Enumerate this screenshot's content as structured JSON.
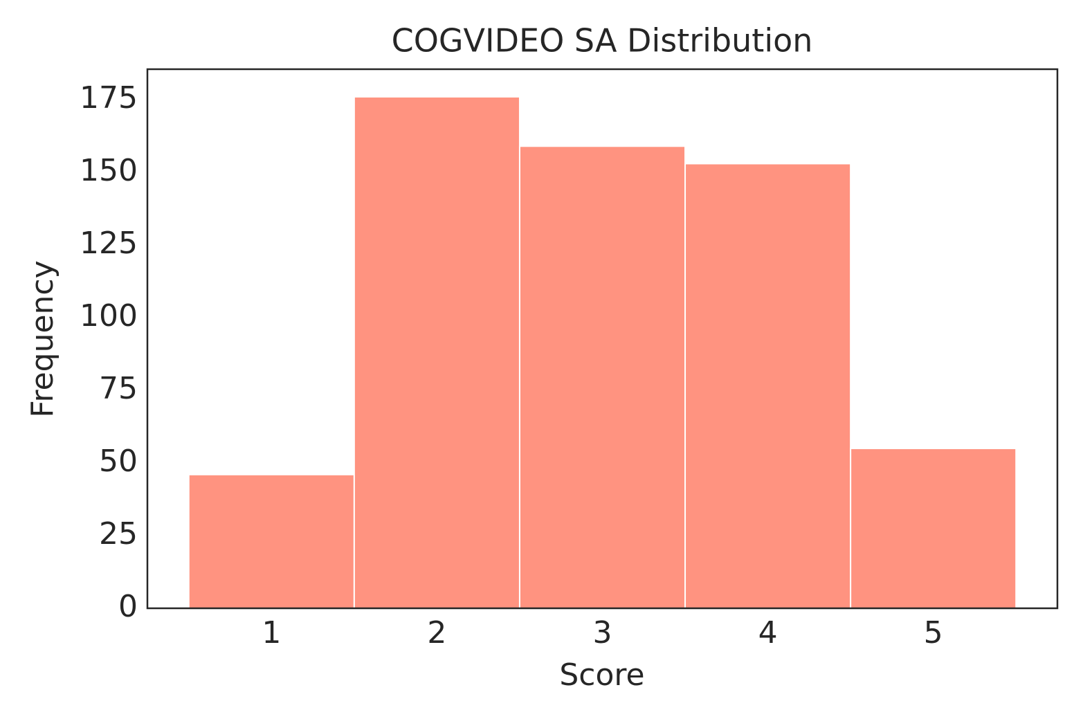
{
  "chart_data": {
    "type": "histogram",
    "title": "COGVIDEO SA Distribution",
    "x_label": "Score",
    "y_label": "Frequency",
    "bins": [
      0.5,
      1.5,
      2.5,
      3.5,
      4.5,
      5.5
    ],
    "values": [
      46,
      176,
      159,
      153,
      55
    ],
    "color": "#ff9380",
    "xlim": [
      0.25,
      5.75
    ],
    "ylim": [
      0,
      185.5
    ],
    "xticks": [
      1,
      2,
      3,
      4,
      5
    ],
    "yticks": [
      0,
      25,
      50,
      75,
      100,
      125,
      150,
      175
    ],
    "grid": false
  }
}
